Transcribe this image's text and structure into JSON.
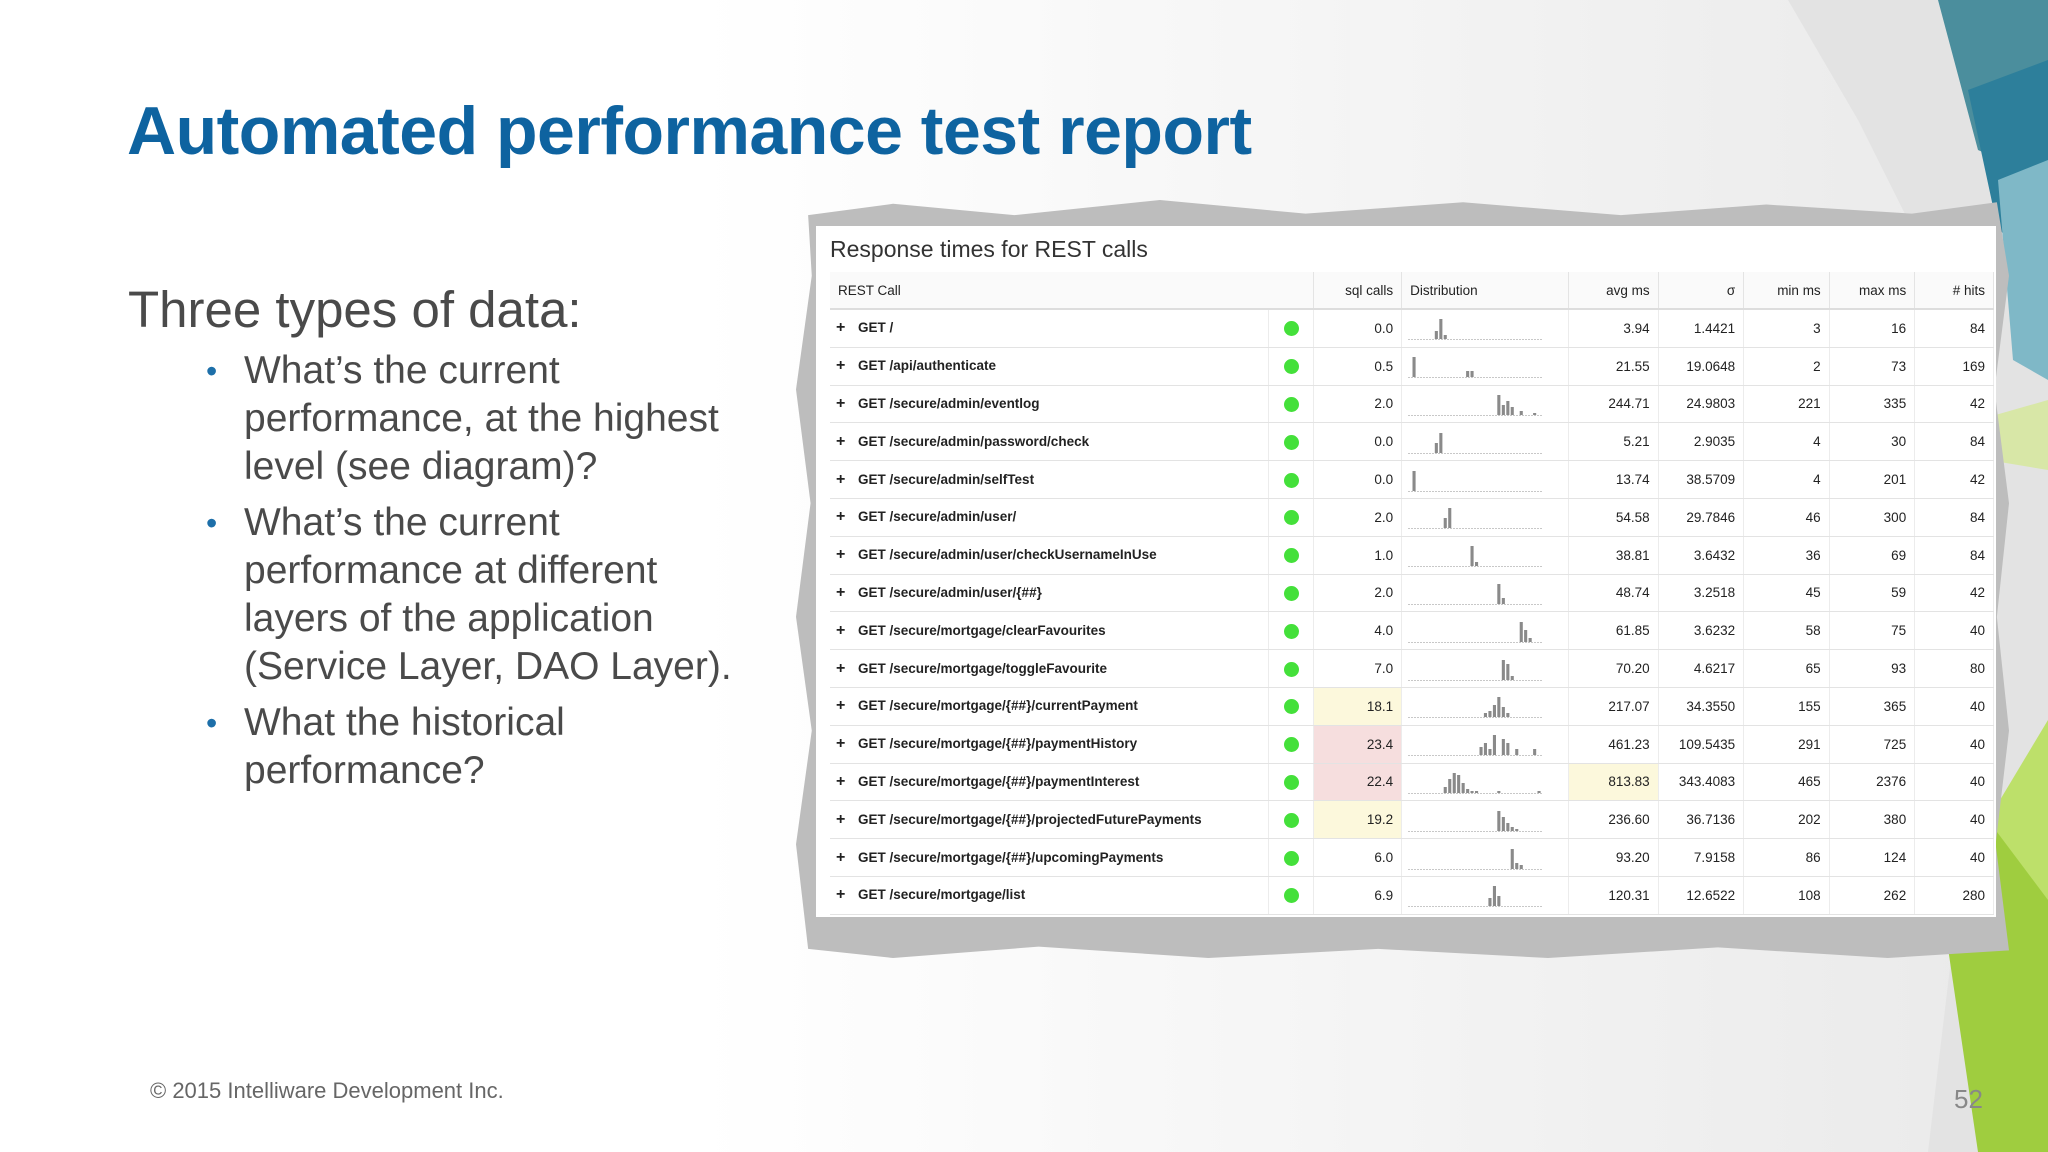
{
  "slide": {
    "title": "Automated performance test report",
    "heading": "Three types of data:",
    "bullets": [
      "What’s the current performance, at the highest level (see diagram)?",
      "What’s the current performance at different layers of the application (Service Layer, DAO Layer).",
      "What the historical performance?"
    ],
    "footer": "© 2015 Intelliware Development Inc.",
    "page_number": "52"
  },
  "report": {
    "title": "Response times for REST calls",
    "columns": [
      "REST Call",
      "sql calls",
      "Distribution",
      "avg ms",
      "σ",
      "min ms",
      "max ms",
      "# hits"
    ],
    "expand_icon": "plus-icon",
    "status_color": "#44e03a",
    "rows": [
      {
        "call": "GET /",
        "sql": "0.0",
        "avg": "3.94",
        "sigma": "1.4421",
        "min": "3",
        "max": "16",
        "hits": "84",
        "sql_hl": "",
        "avg_hl": "",
        "dist": [
          0,
          0,
          0,
          0,
          0,
          0,
          0.4,
          1,
          0.2,
          0,
          0,
          0,
          0,
          0,
          0,
          0,
          0,
          0,
          0,
          0,
          0,
          0,
          0,
          0,
          0,
          0,
          0,
          0,
          0,
          0
        ]
      },
      {
        "call": "GET /api/authenticate",
        "sql": "0.5",
        "avg": "21.55",
        "sigma": "19.0648",
        "min": "2",
        "max": "73",
        "hits": "169",
        "sql_hl": "",
        "avg_hl": "",
        "dist": [
          0,
          1,
          0,
          0,
          0,
          0,
          0,
          0,
          0,
          0,
          0,
          0,
          0,
          0.3,
          0.3,
          0,
          0,
          0,
          0,
          0,
          0,
          0,
          0,
          0,
          0,
          0,
          0,
          0,
          0,
          0
        ]
      },
      {
        "call": "GET /secure/admin/eventlog",
        "sql": "2.0",
        "avg": "244.71",
        "sigma": "24.9803",
        "min": "221",
        "max": "335",
        "hits": "42",
        "sql_hl": "",
        "avg_hl": "",
        "dist": [
          0,
          0,
          0,
          0,
          0,
          0,
          0,
          0,
          0,
          0,
          0,
          0,
          0,
          0,
          0,
          0,
          0,
          0,
          0,
          0,
          1,
          0.5,
          0.7,
          0.4,
          0,
          0.2,
          0,
          0,
          0.1,
          0
        ]
      },
      {
        "call": "GET /secure/admin/password/check",
        "sql": "0.0",
        "avg": "5.21",
        "sigma": "2.9035",
        "min": "4",
        "max": "30",
        "hits": "84",
        "sql_hl": "",
        "avg_hl": "",
        "dist": [
          0,
          0,
          0,
          0,
          0,
          0,
          0.5,
          1,
          0,
          0,
          0,
          0,
          0,
          0,
          0,
          0,
          0,
          0,
          0,
          0,
          0,
          0,
          0,
          0,
          0,
          0,
          0,
          0,
          0,
          0
        ]
      },
      {
        "call": "GET /secure/admin/selfTest",
        "sql": "0.0",
        "avg": "13.74",
        "sigma": "38.5709",
        "min": "4",
        "max": "201",
        "hits": "42",
        "sql_hl": "",
        "avg_hl": "",
        "dist": [
          0,
          1,
          0,
          0,
          0,
          0,
          0,
          0,
          0,
          0,
          0,
          0,
          0,
          0,
          0,
          0,
          0,
          0,
          0,
          0,
          0,
          0,
          0,
          0,
          0,
          0,
          0,
          0,
          0,
          0
        ]
      },
      {
        "call": "GET /secure/admin/user/",
        "sql": "2.0",
        "avg": "54.58",
        "sigma": "29.7846",
        "min": "46",
        "max": "300",
        "hits": "84",
        "sql_hl": "",
        "avg_hl": "",
        "dist": [
          0,
          0,
          0,
          0,
          0,
          0,
          0,
          0,
          0.5,
          1,
          0,
          0,
          0,
          0,
          0,
          0,
          0,
          0,
          0,
          0,
          0,
          0,
          0,
          0,
          0,
          0,
          0,
          0,
          0,
          0
        ]
      },
      {
        "call": "GET /secure/admin/user/checkUsernameInUse",
        "sql": "1.0",
        "avg": "38.81",
        "sigma": "3.6432",
        "min": "36",
        "max": "69",
        "hits": "84",
        "sql_hl": "",
        "avg_hl": "",
        "dist": [
          0,
          0,
          0,
          0,
          0,
          0,
          0,
          0,
          0,
          0,
          0,
          0,
          0,
          0,
          1,
          0.2,
          0,
          0,
          0,
          0,
          0,
          0,
          0,
          0,
          0,
          0,
          0,
          0,
          0,
          0
        ]
      },
      {
        "call": "GET /secure/admin/user/{##}",
        "sql": "2.0",
        "avg": "48.74",
        "sigma": "3.2518",
        "min": "45",
        "max": "59",
        "hits": "42",
        "sql_hl": "",
        "avg_hl": "",
        "dist": [
          0,
          0,
          0,
          0,
          0,
          0,
          0,
          0,
          0,
          0,
          0,
          0,
          0,
          0,
          0,
          0,
          0,
          0,
          0,
          0,
          1,
          0.3,
          0,
          0,
          0,
          0,
          0,
          0,
          0,
          0
        ]
      },
      {
        "call": "GET /secure/mortgage/clearFavourites",
        "sql": "4.0",
        "avg": "61.85",
        "sigma": "3.6232",
        "min": "58",
        "max": "75",
        "hits": "40",
        "sql_hl": "",
        "avg_hl": "",
        "dist": [
          0,
          0,
          0,
          0,
          0,
          0,
          0,
          0,
          0,
          0,
          0,
          0,
          0,
          0,
          0,
          0,
          0,
          0,
          0,
          0,
          0,
          0,
          0,
          0,
          0,
          1,
          0.6,
          0.2,
          0,
          0
        ]
      },
      {
        "call": "GET /secure/mortgage/toggleFavourite",
        "sql": "7.0",
        "avg": "70.20",
        "sigma": "4.6217",
        "min": "65",
        "max": "93",
        "hits": "80",
        "sql_hl": "",
        "avg_hl": "",
        "dist": [
          0,
          0,
          0,
          0,
          0,
          0,
          0,
          0,
          0,
          0,
          0,
          0,
          0,
          0,
          0,
          0,
          0,
          0,
          0,
          0,
          0,
          1,
          0.8,
          0.2,
          0,
          0,
          0,
          0,
          0,
          0
        ]
      },
      {
        "call": "GET /secure/mortgage/{##}/currentPayment",
        "sql": "18.1",
        "avg": "217.07",
        "sigma": "34.3550",
        "min": "155",
        "max": "365",
        "hits": "40",
        "sql_hl": "yellow",
        "avg_hl": "",
        "dist": [
          0,
          0,
          0,
          0,
          0,
          0,
          0,
          0,
          0,
          0,
          0,
          0,
          0,
          0,
          0,
          0,
          0,
          0.2,
          0.3,
          0.6,
          1,
          0.5,
          0.2,
          0,
          0,
          0,
          0,
          0,
          0,
          0
        ]
      },
      {
        "call": "GET /secure/mortgage/{##}/paymentHistory",
        "sql": "23.4",
        "avg": "461.23",
        "sigma": "109.5435",
        "min": "291",
        "max": "725",
        "hits": "40",
        "sql_hl": "red",
        "avg_hl": "",
        "dist": [
          0,
          0,
          0,
          0,
          0,
          0,
          0,
          0,
          0,
          0,
          0,
          0,
          0,
          0,
          0,
          0,
          0.4,
          0.6,
          0.3,
          1,
          0,
          0.8,
          0.6,
          0,
          0.3,
          0,
          0,
          0,
          0.3,
          0
        ]
      },
      {
        "call": "GET /secure/mortgage/{##}/paymentInterest",
        "sql": "22.4",
        "avg": "813.83",
        "sigma": "343.4083",
        "min": "465",
        "max": "2376",
        "hits": "40",
        "sql_hl": "red",
        "avg_hl": "yellow",
        "dist": [
          0,
          0,
          0,
          0,
          0,
          0,
          0,
          0,
          0.3,
          0.7,
          1,
          0.9,
          0.5,
          0.2,
          0.1,
          0.1,
          0,
          0,
          0,
          0,
          0.1,
          0,
          0,
          0,
          0,
          0,
          0,
          0,
          0,
          0.1
        ]
      },
      {
        "call": "GET /secure/mortgage/{##}/projectedFuturePayments",
        "sql": "19.2",
        "avg": "236.60",
        "sigma": "36.7136",
        "min": "202",
        "max": "380",
        "hits": "40",
        "sql_hl": "yellow",
        "avg_hl": "",
        "dist": [
          0,
          0,
          0,
          0,
          0,
          0,
          0,
          0,
          0,
          0,
          0,
          0,
          0,
          0,
          0,
          0,
          0,
          0,
          0,
          0,
          1,
          0.7,
          0.4,
          0.2,
          0.1,
          0,
          0,
          0,
          0,
          0
        ]
      },
      {
        "call": "GET /secure/mortgage/{##}/upcomingPayments",
        "sql": "6.0",
        "avg": "93.20",
        "sigma": "7.9158",
        "min": "86",
        "max": "124",
        "hits": "40",
        "sql_hl": "",
        "avg_hl": "",
        "dist": [
          0,
          0,
          0,
          0,
          0,
          0,
          0,
          0,
          0,
          0,
          0,
          0,
          0,
          0,
          0,
          0,
          0,
          0,
          0,
          0,
          0,
          0,
          0,
          1,
          0.3,
          0.2,
          0,
          0,
          0,
          0
        ]
      },
      {
        "call": "GET /secure/mortgage/list",
        "sql": "6.9",
        "avg": "120.31",
        "sigma": "12.6522",
        "min": "108",
        "max": "262",
        "hits": "280",
        "sql_hl": "",
        "avg_hl": "",
        "dist": [
          0,
          0,
          0,
          0,
          0,
          0,
          0,
          0,
          0,
          0,
          0,
          0,
          0,
          0,
          0,
          0,
          0,
          0,
          0.4,
          1,
          0.5,
          0,
          0,
          0,
          0,
          0,
          0,
          0,
          0,
          0
        ]
      }
    ]
  }
}
